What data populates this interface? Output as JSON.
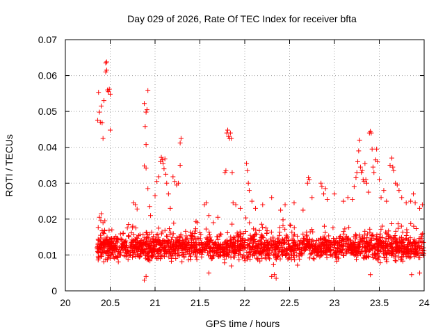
{
  "chart_data": {
    "type": "scatter",
    "title": "Day 029 of 2026, Rate Of TEC Index for receiver bfta",
    "xlabel": "GPS time / hours",
    "ylabel": "ROTI / TECUs",
    "xlim": [
      20,
      24
    ],
    "ylim": [
      0,
      0.07
    ],
    "x_ticks": [
      20,
      20.5,
      21,
      21.5,
      22,
      22.5,
      23,
      23.5,
      24
    ],
    "x_tick_labels": [
      "20",
      "20.5",
      "21",
      "21.5",
      "22",
      "22.5",
      "23",
      "23.5",
      "24"
    ],
    "y_ticks": [
      0,
      0.01,
      0.02,
      0.03,
      0.04,
      0.05,
      0.06,
      0.07
    ],
    "y_tick_labels": [
      "0",
      "0.01",
      "0.02",
      "0.03",
      "0.04",
      "0.05",
      "0.06",
      "0.07"
    ],
    "grid": true,
    "marker": "+",
    "marker_color": "#ff0000",
    "series": [
      {
        "name": "ROTI",
        "points": [
          [
            20.36,
            0.0475
          ],
          [
            20.37,
            0.0553
          ],
          [
            20.38,
            0.0498
          ],
          [
            20.39,
            0.047
          ],
          [
            20.4,
            0.0515
          ],
          [
            20.41,
            0.0468
          ],
          [
            20.42,
            0.0425
          ],
          [
            20.43,
            0.053
          ],
          [
            20.45,
            0.0635
          ],
          [
            20.46,
            0.0638
          ],
          [
            20.45,
            0.061
          ],
          [
            20.46,
            0.0615
          ],
          [
            20.47,
            0.056
          ],
          [
            20.48,
            0.0555
          ],
          [
            20.49,
            0.0562
          ],
          [
            20.5,
            0.0548
          ],
          [
            20.5,
            0.0448
          ],
          [
            20.38,
            0.0205
          ],
          [
            20.4,
            0.0215
          ],
          [
            20.42,
            0.019
          ],
          [
            20.44,
            0.0195
          ],
          [
            20.88,
            0.0522
          ],
          [
            20.89,
            0.0458
          ],
          [
            20.9,
            0.0498
          ],
          [
            20.91,
            0.0505
          ],
          [
            20.92,
            0.0558
          ],
          [
            20.9,
            0.0408
          ],
          [
            20.88,
            0.0348
          ],
          [
            20.9,
            0.0342
          ],
          [
            20.92,
            0.0285
          ],
          [
            20.94,
            0.0235
          ],
          [
            20.95,
            0.021
          ],
          [
            20.76,
            0.0245
          ],
          [
            20.78,
            0.024
          ],
          [
            20.8,
            0.0228
          ],
          [
            21.0,
            0.0265
          ],
          [
            21.02,
            0.0305
          ],
          [
            21.04,
            0.0318
          ],
          [
            21.06,
            0.036
          ],
          [
            21.07,
            0.0372
          ],
          [
            21.08,
            0.0365
          ],
          [
            21.09,
            0.0355
          ],
          [
            21.1,
            0.034
          ],
          [
            21.11,
            0.0368
          ],
          [
            21.12,
            0.0325
          ],
          [
            21.13,
            0.03
          ],
          [
            21.15,
            0.027
          ],
          [
            21.17,
            0.023
          ],
          [
            21.2,
            0.0318
          ],
          [
            21.22,
            0.0305
          ],
          [
            21.24,
            0.0295
          ],
          [
            21.26,
            0.03
          ],
          [
            21.28,
            0.035
          ],
          [
            21.28,
            0.0412
          ],
          [
            21.29,
            0.0425
          ],
          [
            21.55,
            0.024
          ],
          [
            21.57,
            0.0245
          ],
          [
            21.6,
            0.021
          ],
          [
            21.65,
            0.019
          ],
          [
            21.7,
            0.0205
          ],
          [
            21.78,
            0.033
          ],
          [
            21.79,
            0.0335
          ],
          [
            21.8,
            0.044
          ],
          [
            21.81,
            0.0448
          ],
          [
            21.82,
            0.043
          ],
          [
            21.83,
            0.0425
          ],
          [
            21.84,
            0.044
          ],
          [
            21.85,
            0.0425
          ],
          [
            21.86,
            0.033
          ],
          [
            21.87,
            0.0245
          ],
          [
            21.9,
            0.024
          ],
          [
            21.95,
            0.023
          ],
          [
            22.02,
            0.0355
          ],
          [
            22.03,
            0.0335
          ],
          [
            22.04,
            0.03
          ],
          [
            22.05,
            0.028
          ],
          [
            22.08,
            0.025
          ],
          [
            22.12,
            0.023
          ],
          [
            22.2,
            0.024
          ],
          [
            22.3,
            0.026
          ],
          [
            22.4,
            0.0225
          ],
          [
            22.45,
            0.024
          ],
          [
            22.55,
            0.0245
          ],
          [
            22.65,
            0.0225
          ],
          [
            22.7,
            0.03
          ],
          [
            22.71,
            0.0315
          ],
          [
            22.72,
            0.031
          ],
          [
            22.75,
            0.026
          ],
          [
            22.85,
            0.03
          ],
          [
            22.86,
            0.029
          ],
          [
            22.88,
            0.027
          ],
          [
            22.9,
            0.0285
          ],
          [
            22.92,
            0.0255
          ],
          [
            23.0,
            0.027
          ],
          [
            23.1,
            0.025
          ],
          [
            23.15,
            0.026
          ],
          [
            23.2,
            0.0255
          ],
          [
            23.22,
            0.029
          ],
          [
            23.24,
            0.0315
          ],
          [
            23.25,
            0.033
          ],
          [
            23.26,
            0.036
          ],
          [
            23.27,
            0.039
          ],
          [
            23.28,
            0.042
          ],
          [
            23.29,
            0.0345
          ],
          [
            23.3,
            0.033
          ],
          [
            23.31,
            0.0335
          ],
          [
            23.32,
            0.031
          ],
          [
            23.33,
            0.0305
          ],
          [
            23.34,
            0.0355
          ],
          [
            23.35,
            0.031
          ],
          [
            23.36,
            0.03
          ],
          [
            23.38,
            0.0275
          ],
          [
            23.39,
            0.044
          ],
          [
            23.4,
            0.0445
          ],
          [
            23.41,
            0.044
          ],
          [
            23.42,
            0.0395
          ],
          [
            23.43,
            0.0345
          ],
          [
            23.44,
            0.033
          ],
          [
            23.46,
            0.0365
          ],
          [
            23.47,
            0.0395
          ],
          [
            23.48,
            0.036
          ],
          [
            23.5,
            0.031
          ],
          [
            23.52,
            0.026
          ],
          [
            23.55,
            0.028
          ],
          [
            23.58,
            0.025
          ],
          [
            23.62,
            0.035
          ],
          [
            23.64,
            0.037
          ],
          [
            23.65,
            0.0345
          ],
          [
            23.66,
            0.0335
          ],
          [
            23.68,
            0.03
          ],
          [
            23.7,
            0.0295
          ],
          [
            23.72,
            0.028
          ],
          [
            23.75,
            0.026
          ],
          [
            23.8,
            0.0245
          ],
          [
            23.85,
            0.025
          ],
          [
            23.88,
            0.027
          ],
          [
            23.9,
            0.0245
          ],
          [
            23.95,
            0.023
          ],
          [
            23.98,
            0.024
          ],
          [
            22.3,
            0.004
          ],
          [
            22.35,
            0.0035
          ],
          [
            22.33,
            0.0045
          ],
          [
            20.88,
            0.003
          ],
          [
            20.9,
            0.004
          ],
          [
            21.6,
            0.005
          ],
          [
            23.4,
            0.0045
          ],
          [
            23.86,
            0.0045
          ],
          [
            23.95,
            0.005
          ]
        ],
        "band": {
          "x_start": 20.35,
          "x_end": 24.0,
          "mean": 0.012,
          "min": 0.004,
          "max": 0.022,
          "count": 2100
        }
      }
    ]
  }
}
